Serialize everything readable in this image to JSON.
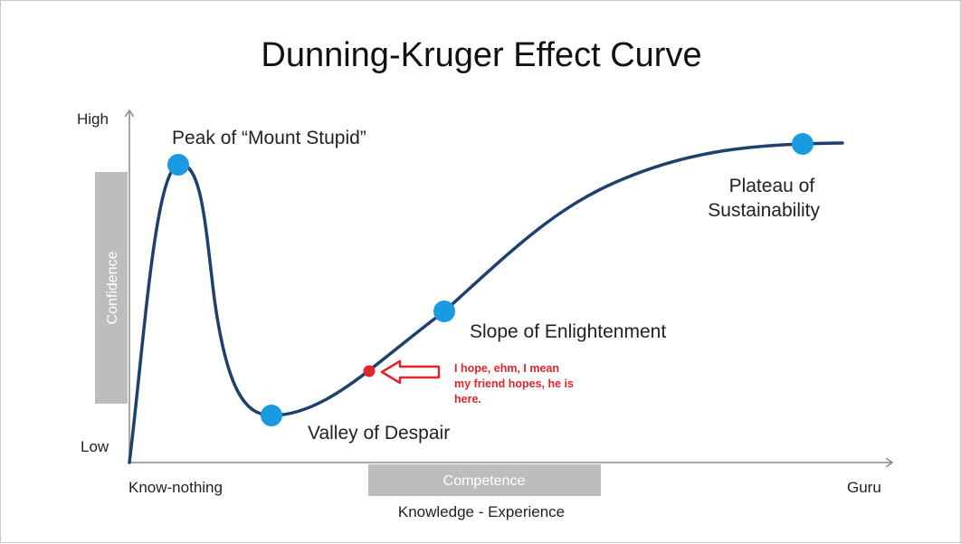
{
  "title": "Dunning-Kruger Effect Curve",
  "y_axis": {
    "top_label": "High",
    "bottom_label": "Low",
    "band_label": "Confidence"
  },
  "x_axis": {
    "left_label": "Know-nothing",
    "right_label": "Guru",
    "band_label": "Competence",
    "caption": "Knowledge - Experience"
  },
  "stages": {
    "peak": [
      "Peak of “Mount Stupid”"
    ],
    "valley": [
      "Valley of Despair"
    ],
    "slope": [
      "Slope of Enlightenment"
    ],
    "plateau": [
      "Plateau of",
      "Sustainability"
    ]
  },
  "annotation": {
    "lines": [
      "I hope, ehm, I mean",
      "my friend hopes, he is",
      "here."
    ],
    "color": "#e0262b"
  },
  "colors": {
    "curve": "#1f3f6e",
    "marker": "#1a9ae0",
    "band": "#bdbdbd",
    "axis": "#8a8a8a",
    "annotation": "#e0262b"
  }
}
